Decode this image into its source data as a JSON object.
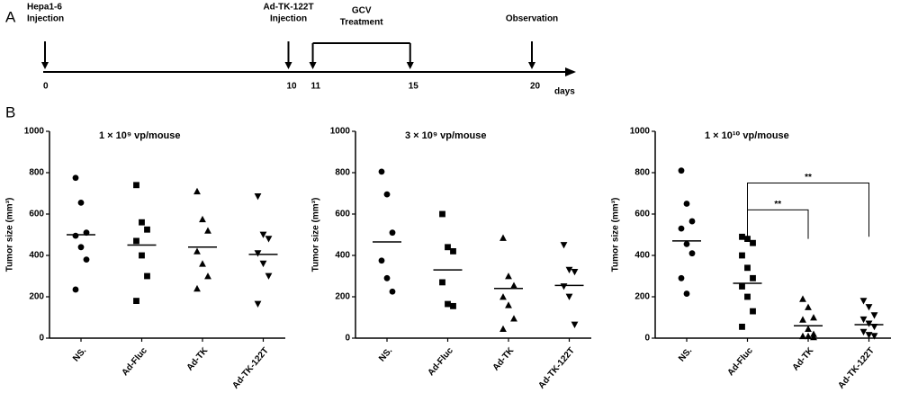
{
  "panels": [
    "A",
    "B"
  ],
  "timeline": {
    "ticks": [
      0,
      10,
      11,
      15,
      20
    ],
    "unit": "days",
    "events": [
      {
        "lines": [
          "Hepa1-6",
          "Injection"
        ],
        "start": 0
      },
      {
        "lines": [
          "Ad-TK-122T",
          "Injection"
        ],
        "start": 10
      },
      {
        "lines": [
          "GCV",
          "Treatment"
        ],
        "start": 11,
        "end": 15
      },
      {
        "lines": [
          "Observation"
        ],
        "start": 20
      }
    ]
  },
  "chart_data": [
    {
      "type": "scatter",
      "title": "1 × 10⁹ vp/mouse",
      "y_label": "Tumor size (mm³)",
      "categories": [
        "NS.",
        "Ad-Fluc",
        "Ad-TK",
        "Ad-TK-122T"
      ],
      "markers": [
        "circle",
        "square",
        "triangle-up",
        "triangle-down"
      ],
      "color": "#000000",
      "groups": [
        [
          775,
          655,
          510,
          495,
          440,
          380,
          235
        ],
        [
          740,
          560,
          525,
          470,
          400,
          300,
          180
        ],
        [
          710,
          575,
          520,
          420,
          360,
          300,
          240
        ],
        [
          685,
          500,
          480,
          410,
          360,
          300,
          165
        ]
      ],
      "medians": [
        500,
        450,
        440,
        405
      ],
      "ylim": [
        0,
        1000
      ],
      "yticks": [
        0,
        200,
        400,
        600,
        800,
        1000
      ]
    },
    {
      "type": "scatter",
      "title": "3 × 10⁹ vp/mouse",
      "y_label": "Tumor size (mm³)",
      "categories": [
        "NS.",
        "Ad-Fluc",
        "Ad-TK",
        "Ad-TK-122T"
      ],
      "markers": [
        "circle",
        "square",
        "triangle-up",
        "triangle-down"
      ],
      "color": "#000000",
      "groups": [
        [
          805,
          695,
          510,
          375,
          290,
          225
        ],
        [
          600,
          440,
          420,
          270,
          165,
          155
        ],
        [
          485,
          300,
          255,
          200,
          160,
          95,
          45
        ],
        [
          450,
          330,
          320,
          250,
          200,
          65
        ]
      ],
      "medians": [
        465,
        330,
        240,
        255
      ],
      "ylim": [
        0,
        1000
      ],
      "yticks": [
        0,
        200,
        400,
        600,
        800,
        1000
      ]
    },
    {
      "type": "scatter",
      "title": "1 × 10¹⁰ vp/mouse",
      "y_label": "Tumor size (mm³)",
      "categories": [
        "NS.",
        "Ad-Fluc",
        "Ad-TK",
        "Ad-TK-122T"
      ],
      "markers": [
        "circle",
        "square",
        "triangle-up",
        "triangle-down"
      ],
      "color": "#000000",
      "groups": [
        [
          810,
          650,
          565,
          530,
          455,
          410,
          290,
          215
        ],
        [
          490,
          480,
          460,
          400,
          340,
          290,
          250,
          200,
          130,
          55
        ],
        [
          190,
          150,
          100,
          90,
          45,
          20,
          10,
          10,
          5
        ],
        [
          180,
          150,
          110,
          90,
          70,
          55,
          30,
          15,
          10
        ]
      ],
      "medians": [
        470,
        265,
        60,
        65
      ],
      "ylim": [
        0,
        1000
      ],
      "yticks": [
        0,
        200,
        400,
        600,
        800,
        1000
      ],
      "annotations": [
        {
          "from": 1,
          "to": 2,
          "y": 620,
          "bottom": 480,
          "label": "**"
        },
        {
          "from": 1,
          "to": 3,
          "y": 750,
          "bottom": 490,
          "label": "**"
        }
      ]
    }
  ]
}
